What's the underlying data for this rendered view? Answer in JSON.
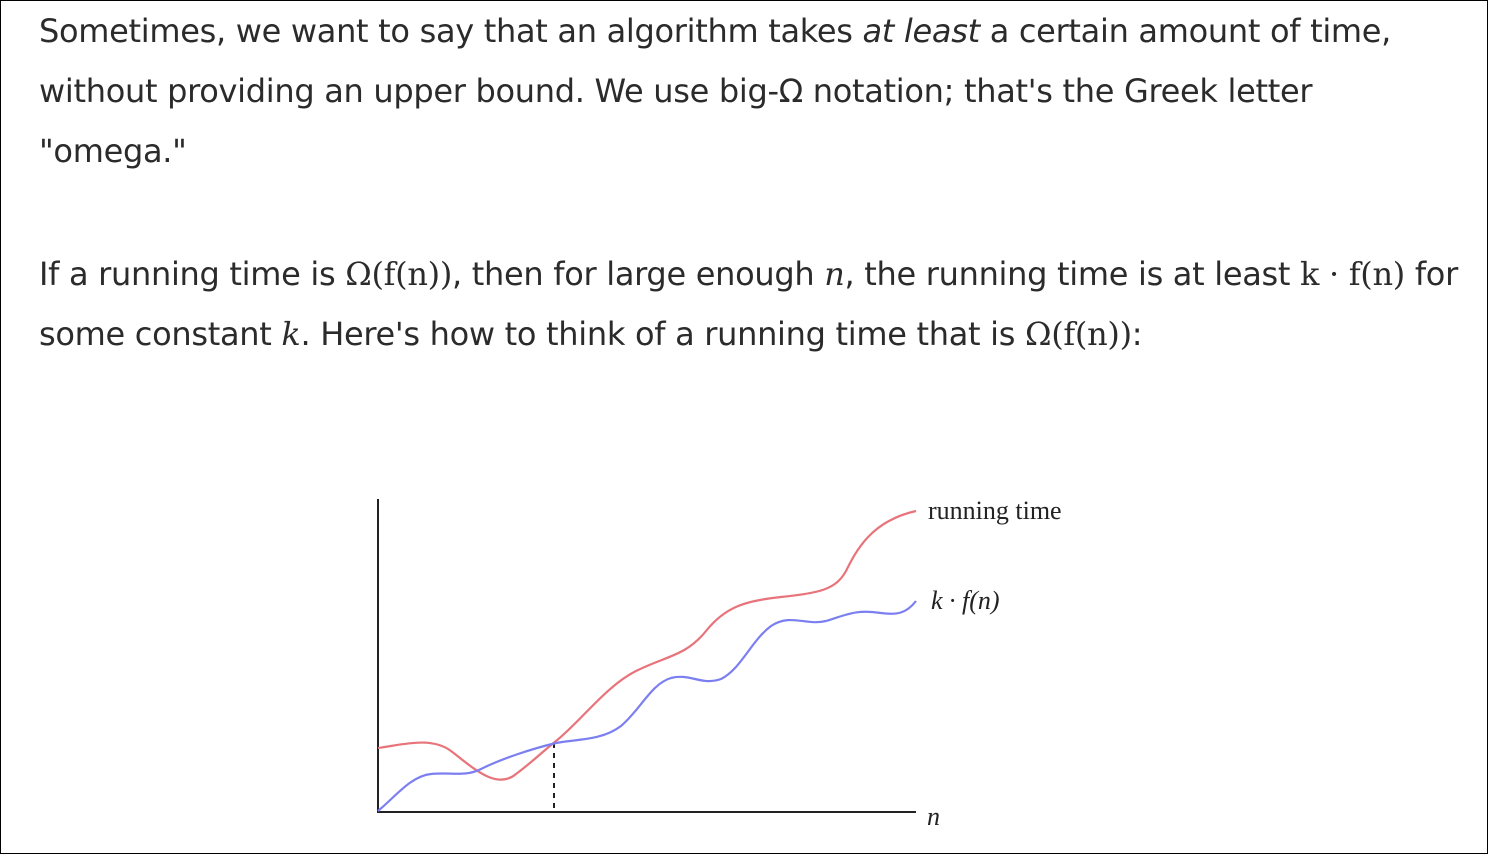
{
  "paragraph1": {
    "before_emphasis": "Sometimes, we want to say that an algorithm takes ",
    "emphasis": "at least",
    "after_emphasis": " a certain amount of time, without providing an upper bound. We use big-Ω notation; that's the Greek letter \"omega.\""
  },
  "paragraph2": {
    "t1": "If a running time is ",
    "omega_fn": "Ω(f(n))",
    "t2": ", then for large enough ",
    "n": "n",
    "t3": ", the running time is at least ",
    "k_dot_fn": "k · f(n)",
    "t4": " for some constant ",
    "k": "k",
    "t5": ". Here's how to think of a running time that is ",
    "omega_fn_end": "Ω(f(n))",
    "t6": ":"
  },
  "figure": {
    "label_running_time": "running time",
    "label_kfn": "k · f(n)",
    "label_n": "n",
    "colors": {
      "running_time": "#e8737a",
      "kfn": "#7b7ff0",
      "axes": "#222222"
    }
  }
}
